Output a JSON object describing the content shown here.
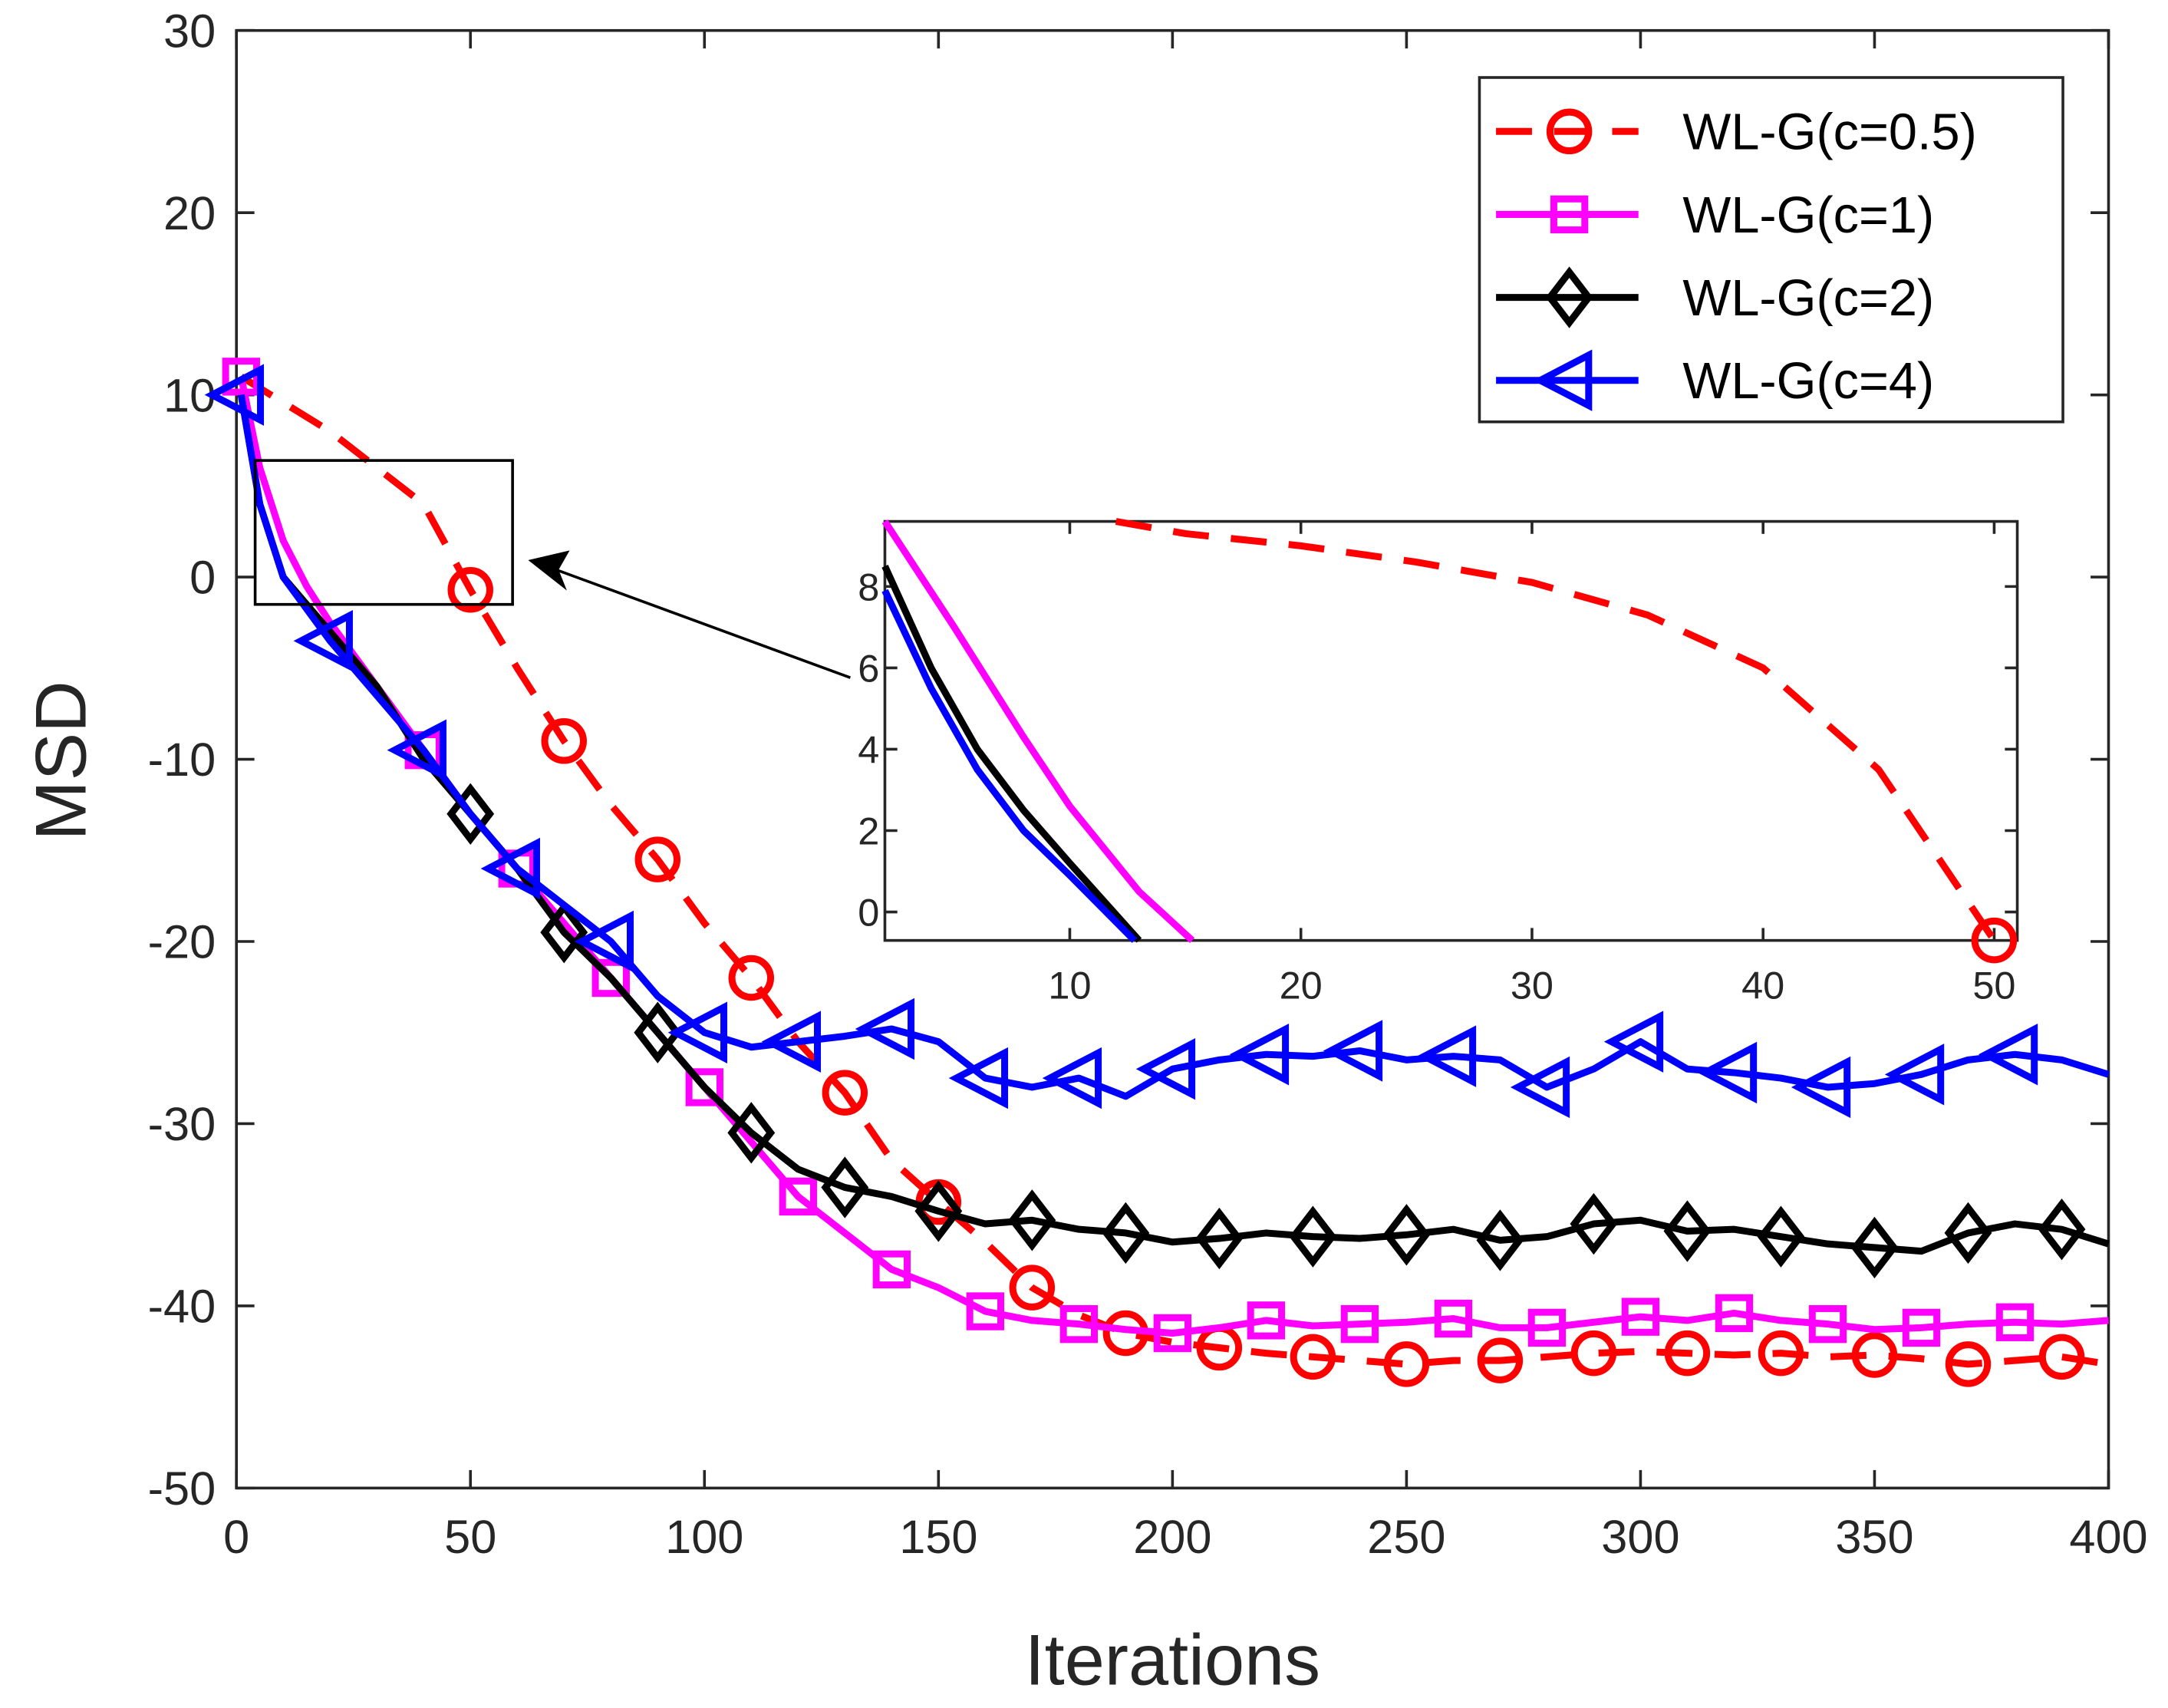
{
  "chart_data": {
    "type": "line",
    "xlabel": "Iterations",
    "ylabel": "MSD",
    "xlim": [
      0,
      400
    ],
    "ylim": [
      -50,
      30
    ],
    "xticks": [
      0,
      50,
      100,
      150,
      200,
      250,
      300,
      350,
      400
    ],
    "yticks": [
      30,
      20,
      10,
      0,
      -10,
      -20,
      -30,
      -40,
      -50
    ],
    "grid": false,
    "legend_position": "top-right",
    "series": [
      {
        "name": "WL-G(c=0.5)",
        "color": "#ff0000",
        "dash": true,
        "marker": "circle",
        "x": [
          1,
          20,
          40,
          50,
          60,
          70,
          80,
          90,
          100,
          110,
          120,
          130,
          140,
          150,
          160,
          170,
          180,
          190,
          200,
          210,
          220,
          230,
          240,
          250,
          260,
          270,
          280,
          290,
          300,
          310,
          320,
          330,
          340,
          350,
          360,
          370,
          380,
          390,
          400
        ],
        "y": [
          11,
          8,
          4,
          -0.7,
          -5,
          -9,
          -12.5,
          -15.5,
          -19,
          -22,
          -25.5,
          -28.3,
          -32,
          -34.3,
          -36.5,
          -39,
          -40.5,
          -41.5,
          -42,
          -42.3,
          -42.6,
          -42.8,
          -43,
          -43.2,
          -43,
          -43,
          -42.8,
          -42.6,
          -42.5,
          -42.6,
          -42.7,
          -42.6,
          -42.8,
          -42.7,
          -42.9,
          -43.2,
          -43,
          -42.8,
          -43.2
        ],
        "marker_x": [
          50,
          70,
          90,
          110,
          130,
          150,
          170,
          190,
          210,
          230,
          250,
          270,
          290,
          310,
          330,
          350,
          370,
          390
        ]
      },
      {
        "name": "WL-G(c=1)",
        "color": "#ff00ff",
        "dash": false,
        "marker": "square",
        "x": [
          1,
          5,
          10,
          15,
          20,
          30,
          40,
          50,
          60,
          70,
          80,
          90,
          100,
          110,
          120,
          130,
          140,
          150,
          160,
          170,
          180,
          190,
          200,
          210,
          220,
          230,
          240,
          250,
          260,
          270,
          280,
          290,
          300,
          310,
          320,
          330,
          340,
          350,
          360,
          370,
          380,
          390,
          400
        ],
        "y": [
          11,
          6,
          2,
          -0.5,
          -2.5,
          -6,
          -9.5,
          -13,
          -16,
          -19,
          -22,
          -25,
          -28,
          -31,
          -34,
          -36,
          -38,
          -39,
          -40.3,
          -40.8,
          -41,
          -41.3,
          -41.5,
          -41.2,
          -40.8,
          -41.1,
          -41,
          -40.9,
          -40.7,
          -41.2,
          -41.2,
          -40.9,
          -40.6,
          -40.8,
          -40.4,
          -40.8,
          -41,
          -41.3,
          -41.2,
          -41,
          -40.9,
          -41,
          -40.8
        ],
        "marker_x": [
          1,
          40,
          60,
          80,
          100,
          120,
          140,
          160,
          180,
          200,
          220,
          240,
          260,
          280,
          300,
          320,
          340,
          360,
          380
        ]
      },
      {
        "name": "WL-G(c=2)",
        "color": "#000000",
        "dash": false,
        "marker": "diamond",
        "x": [
          1,
          5,
          10,
          20,
          30,
          40,
          50,
          60,
          70,
          80,
          90,
          100,
          110,
          120,
          130,
          140,
          150,
          160,
          170,
          180,
          190,
          200,
          210,
          220,
          230,
          240,
          250,
          260,
          270,
          280,
          290,
          300,
          310,
          320,
          330,
          340,
          350,
          360,
          370,
          380,
          390,
          400
        ],
        "y": [
          10,
          4,
          0,
          -3,
          -6,
          -10,
          -13,
          -16,
          -19.5,
          -22,
          -25,
          -28,
          -30.5,
          -32.5,
          -33.5,
          -34,
          -34.8,
          -35.5,
          -35.3,
          -35.8,
          -36,
          -36.5,
          -36.3,
          -36,
          -36.2,
          -36.3,
          -36.1,
          -35.8,
          -36.4,
          -36.2,
          -35.5,
          -35.3,
          -35.9,
          -35.8,
          -36.2,
          -36.6,
          -36.8,
          -37,
          -36,
          -35.5,
          -35.8,
          -36.6
        ],
        "marker_x": [
          50,
          70,
          90,
          110,
          130,
          150,
          170,
          190,
          210,
          230,
          250,
          270,
          290,
          310,
          330,
          350,
          370,
          390
        ]
      },
      {
        "name": "WL-G(c=4)",
        "color": "#0000ff",
        "dash": false,
        "marker": "triangle-left",
        "x": [
          1,
          5,
          10,
          20,
          30,
          40,
          50,
          60,
          70,
          80,
          90,
          100,
          110,
          120,
          130,
          140,
          150,
          160,
          170,
          180,
          190,
          200,
          210,
          220,
          230,
          240,
          250,
          260,
          270,
          280,
          290,
          300,
          310,
          320,
          330,
          340,
          350,
          360,
          370,
          380,
          390,
          400
        ],
        "y": [
          10,
          4,
          0,
          -3.5,
          -6.5,
          -9.5,
          -13,
          -16,
          -18,
          -20,
          -23,
          -25,
          -25.8,
          -25.5,
          -25.2,
          -24.8,
          -25.5,
          -27.5,
          -28,
          -27.5,
          -28.5,
          -27,
          -26.5,
          -26.2,
          -26.3,
          -26,
          -26.5,
          -26.3,
          -26.5,
          -28,
          -27,
          -25.5,
          -27,
          -27.2,
          -27.5,
          -28,
          -27.8,
          -27.3,
          -26.5,
          -26.2,
          -26.5,
          -27.3
        ],
        "marker_x": [
          1,
          20,
          40,
          60,
          80,
          100,
          120,
          140,
          160,
          180,
          200,
          220,
          240,
          260,
          280,
          300,
          320,
          340,
          360,
          380
        ]
      }
    ],
    "inset": {
      "xlim": [
        2,
        51
      ],
      "ylim": [
        -0.7,
        9.6
      ],
      "xticks": [
        10,
        20,
        30,
        40,
        50
      ],
      "yticks": [
        0,
        2,
        4,
        6,
        8
      ],
      "zoom_region": {
        "x": [
          4,
          59
        ],
        "y": [
          -1.5,
          6.4
        ]
      },
      "series": [
        {
          "name": "WL-G(c=0.5)",
          "x": [
            12,
            15,
            20,
            25,
            30,
            35,
            40,
            45,
            50
          ],
          "y": [
            9.6,
            9.3,
            9,
            8.6,
            8.1,
            7.3,
            6,
            3.5,
            -0.7
          ],
          "marker_x": [
            50
          ]
        },
        {
          "name": "WL-G(c=1)",
          "x": [
            2,
            5,
            8,
            10,
            13,
            15.3
          ],
          "y": [
            9.6,
            7,
            4.3,
            2.6,
            0.5,
            -0.7
          ],
          "marker_x": []
        },
        {
          "name": "WL-G(c=2)",
          "x": [
            2,
            4,
            6,
            8,
            10,
            13
          ],
          "y": [
            8.5,
            6,
            4,
            2.5,
            1.2,
            -0.7
          ],
          "marker_x": []
        },
        {
          "name": "WL-G(c=4)",
          "x": [
            2,
            4,
            6,
            8,
            10,
            12.8
          ],
          "y": [
            7.9,
            5.5,
            3.5,
            2,
            0.9,
            -0.7
          ],
          "marker_x": []
        }
      ]
    }
  }
}
